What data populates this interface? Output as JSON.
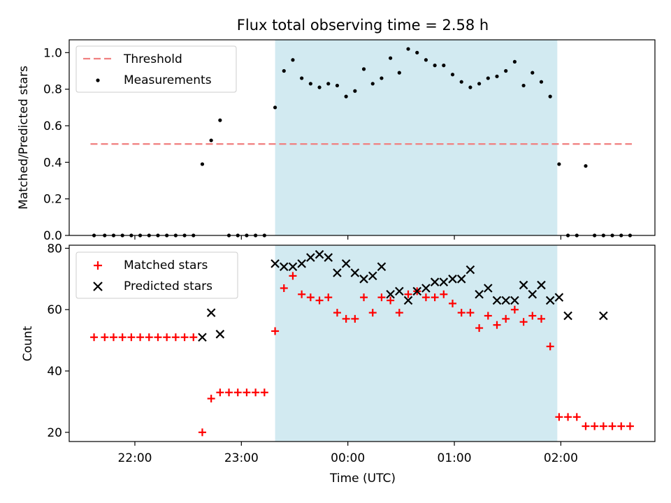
{
  "title": "Flux total observing time = 2.58 h",
  "xlabel": "Time (UTC)",
  "x_ticks": [
    "22:00",
    "23:00",
    "00:00",
    "01:00",
    "02:00"
  ],
  "colors": {
    "shade": "#add8e6",
    "threshold": "#f08080",
    "matched": "#ff0000",
    "predicted": "#000000",
    "measurements": "#000000"
  },
  "chart_data": [
    {
      "type": "scatter",
      "ylabel": "Matched/Predicted stars",
      "ylim": [
        0,
        1.07
      ],
      "y_ticks": [
        "0.0",
        "0.2",
        "0.4",
        "0.6",
        "0.8",
        "1.0"
      ],
      "x_range": [
        "21:23",
        "02:53"
      ],
      "shaded_span": [
        "23:19",
        "01:58"
      ],
      "threshold": {
        "name": "Threshold",
        "value": 0.5,
        "x": [
          "21:35",
          "02:40"
        ]
      },
      "legend": [
        "Threshold",
        "Measurements"
      ],
      "legend_loc": "upper left",
      "series": [
        {
          "name": "Measurements",
          "x": [
            "21:37",
            "21:43",
            "21:48",
            "21:53",
            "21:58",
            "22:03",
            "22:08",
            "22:13",
            "22:18",
            "22:23",
            "22:28",
            "22:33",
            "22:38",
            "22:43",
            "22:48",
            "22:53",
            "22:58",
            "23:03",
            "23:08",
            "23:13",
            "23:19",
            "23:24",
            "23:29",
            "23:34",
            "23:39",
            "23:44",
            "23:49",
            "23:54",
            "23:59",
            "00:04",
            "00:09",
            "00:14",
            "00:19",
            "00:24",
            "00:29",
            "00:34",
            "00:39",
            "00:44",
            "00:49",
            "00:54",
            "00:59",
            "01:04",
            "01:09",
            "01:14",
            "01:19",
            "01:24",
            "01:29",
            "01:34",
            "01:39",
            "01:44",
            "01:49",
            "01:54",
            "01:59",
            "02:04",
            "02:09",
            "02:14",
            "02:19",
            "02:24",
            "02:29",
            "02:34",
            "02:39"
          ],
          "y": [
            0,
            0,
            0,
            0,
            0,
            0,
            0,
            0,
            0,
            0,
            0,
            0,
            0.39,
            0.52,
            0.63,
            0,
            0,
            0,
            0,
            0,
            0.7,
            0.9,
            0.96,
            0.86,
            0.83,
            0.81,
            0.83,
            0.82,
            0.76,
            0.79,
            0.91,
            0.83,
            0.86,
            0.97,
            0.89,
            1.02,
            1.0,
            0.96,
            0.93,
            0.93,
            0.88,
            0.84,
            0.81,
            0.83,
            0.86,
            0.87,
            0.9,
            0.95,
            0.82,
            0.89,
            0.84,
            0.76,
            0.39,
            0,
            0,
            0.38,
            0,
            0,
            0,
            0,
            0
          ]
        }
      ]
    },
    {
      "type": "scatter",
      "ylabel": "Count",
      "ylim": [
        17,
        81
      ],
      "y_ticks": [
        "20",
        "40",
        "60",
        "80"
      ],
      "x_range": [
        "21:23",
        "02:53"
      ],
      "shaded_span": [
        "23:19",
        "01:58"
      ],
      "legend": [
        "Matched stars",
        "Predicted stars"
      ],
      "legend_loc": "upper left",
      "series": [
        {
          "name": "Matched stars",
          "x": [
            "21:37",
            "21:43",
            "21:48",
            "21:53",
            "21:58",
            "22:03",
            "22:08",
            "22:13",
            "22:18",
            "22:23",
            "22:28",
            "22:33",
            "22:38",
            "22:43",
            "22:48",
            "22:53",
            "22:58",
            "23:03",
            "23:08",
            "23:13",
            "23:19",
            "23:24",
            "23:29",
            "23:34",
            "23:39",
            "23:44",
            "23:49",
            "23:54",
            "23:59",
            "00:04",
            "00:09",
            "00:14",
            "00:19",
            "00:24",
            "00:29",
            "00:34",
            "00:39",
            "00:44",
            "00:49",
            "00:54",
            "00:59",
            "01:04",
            "01:09",
            "01:14",
            "01:19",
            "01:24",
            "01:29",
            "01:34",
            "01:39",
            "01:44",
            "01:49",
            "01:54",
            "01:59",
            "02:04",
            "02:09",
            "02:14",
            "02:19",
            "02:24",
            "02:29",
            "02:34",
            "02:39"
          ],
          "y": [
            51,
            51,
            51,
            51,
            51,
            51,
            51,
            51,
            51,
            51,
            51,
            51,
            20,
            31,
            33,
            33,
            33,
            33,
            33,
            33,
            53,
            67,
            71,
            65,
            64,
            63,
            64,
            59,
            57,
            57,
            64,
            59,
            64,
            63,
            59,
            65,
            66,
            64,
            64,
            65,
            62,
            59,
            59,
            54,
            58,
            55,
            57,
            60,
            56,
            58,
            57,
            48,
            25,
            25,
            25,
            22,
            22,
            22,
            22,
            22,
            22
          ]
        },
        {
          "name": "Predicted stars",
          "x": [
            "22:38",
            "22:43",
            "22:48",
            "23:19",
            "23:24",
            "23:29",
            "23:34",
            "23:39",
            "23:44",
            "23:49",
            "23:54",
            "23:59",
            "00:04",
            "00:09",
            "00:14",
            "00:19",
            "00:24",
            "00:29",
            "00:34",
            "00:39",
            "00:44",
            "00:49",
            "00:54",
            "00:59",
            "01:04",
            "01:09",
            "01:14",
            "01:19",
            "01:24",
            "01:29",
            "01:34",
            "01:39",
            "01:44",
            "01:49",
            "01:54",
            "01:59",
            "02:04",
            "02:24"
          ],
          "y": [
            51,
            59,
            52,
            75,
            74,
            74,
            75,
            77,
            78,
            77,
            72,
            75,
            72,
            70,
            71,
            74,
            65,
            66,
            63,
            66,
            67,
            69,
            69,
            70,
            70,
            73,
            65,
            67,
            63,
            63,
            63,
            68,
            65,
            68,
            63,
            64,
            58,
            58
          ]
        }
      ]
    }
  ]
}
